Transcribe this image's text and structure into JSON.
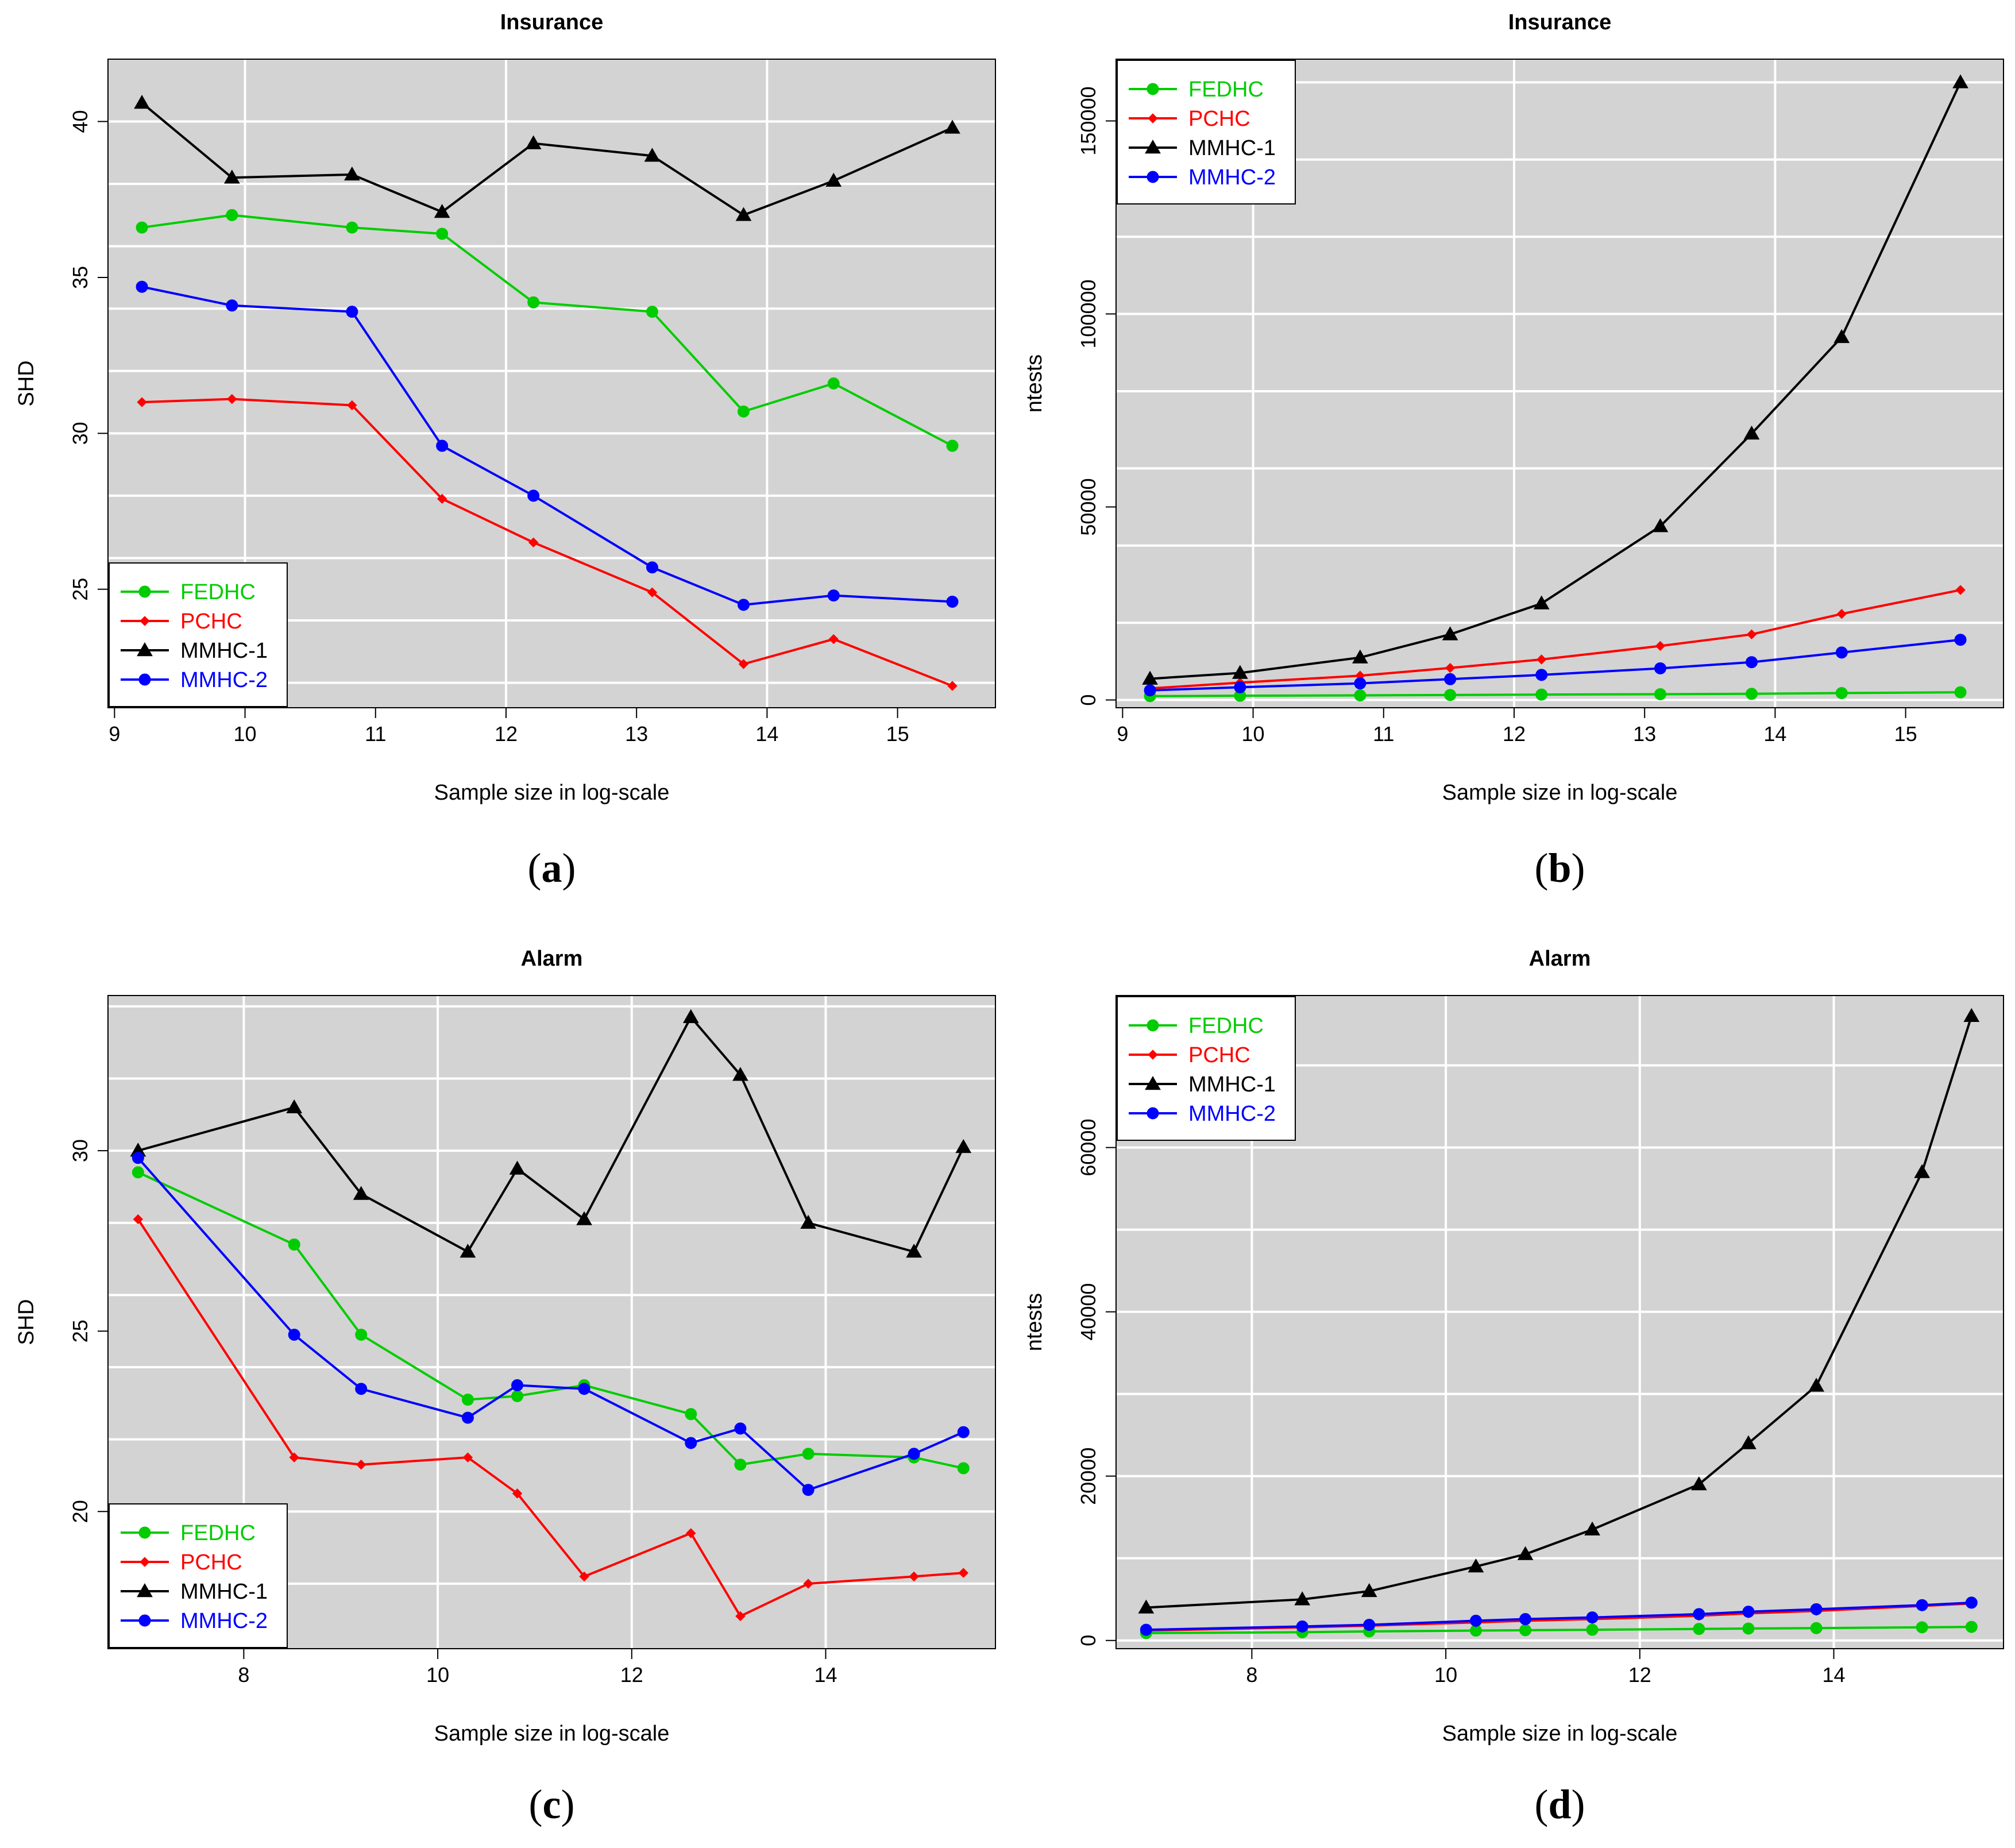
{
  "colors": {
    "FEDHC": "#00cc00",
    "PCHC": "#ff0000",
    "MMHC-1": "#000000",
    "MMHC-2": "#0000ff",
    "panel_bg": "#d3d3d3",
    "grid": "#ffffff"
  },
  "chart_data": [
    {
      "id": "a",
      "caption_letter": "a",
      "type": "line",
      "title": "Insurance",
      "xlabel": "Sample size in log-scale",
      "ylabel": "SHD",
      "xlim": [
        8.95,
        15.75
      ],
      "ylim": [
        21.2,
        42.0
      ],
      "xticks": [
        9,
        10,
        11,
        12,
        13,
        14,
        15
      ],
      "yticks": [
        25,
        30,
        35,
        40
      ],
      "xgrid": [
        10,
        12,
        14
      ],
      "ygrid": [
        22,
        24,
        26,
        28,
        30,
        32,
        34,
        36,
        38,
        40
      ],
      "legend_position": "bottom-left",
      "x": [
        9.21,
        9.9,
        10.82,
        11.51,
        12.21,
        13.12,
        13.82,
        14.51,
        15.42
      ],
      "series": [
        {
          "name": "FEDHC",
          "marker": "circle",
          "values": [
            36.6,
            37.0,
            36.6,
            36.4,
            34.2,
            33.9,
            30.7,
            31.6,
            29.6
          ]
        },
        {
          "name": "PCHC",
          "marker": "diamond",
          "values": [
            31.0,
            31.1,
            30.9,
            27.9,
            26.5,
            24.9,
            22.6,
            23.4,
            21.9
          ]
        },
        {
          "name": "MMHC-1",
          "marker": "triangle",
          "values": [
            40.6,
            38.2,
            38.3,
            37.1,
            39.3,
            38.9,
            37.0,
            38.1,
            39.8
          ]
        },
        {
          "name": "MMHC-2",
          "marker": "circle",
          "values": [
            34.7,
            34.1,
            33.9,
            29.6,
            28.0,
            25.7,
            24.5,
            24.8,
            24.6
          ]
        }
      ]
    },
    {
      "id": "b",
      "caption_letter": "b",
      "type": "line",
      "title": "Insurance",
      "xlabel": "Sample size in log-scale",
      "ylabel": "ntests",
      "xlim": [
        8.95,
        15.75
      ],
      "ylim": [
        -2000,
        166000
      ],
      "xticks": [
        9,
        10,
        11,
        12,
        13,
        14,
        15
      ],
      "yticks": [
        0,
        50000,
        100000,
        150000
      ],
      "xgrid": [
        10,
        12,
        14
      ],
      "ygrid": [
        0,
        20000,
        40000,
        60000,
        80000,
        100000,
        120000,
        140000,
        160000
      ],
      "legend_position": "top-left",
      "x": [
        9.21,
        9.9,
        10.82,
        11.51,
        12.21,
        13.12,
        13.82,
        14.51,
        15.42
      ],
      "series": [
        {
          "name": "FEDHC",
          "marker": "circle",
          "values": [
            1000,
            1100,
            1200,
            1300,
            1400,
            1500,
            1600,
            1800,
            2000
          ]
        },
        {
          "name": "PCHC",
          "marker": "diamond",
          "values": [
            3000,
            4500,
            6300,
            8300,
            10500,
            14000,
            17000,
            22300,
            28500
          ]
        },
        {
          "name": "MMHC-1",
          "marker": "triangle",
          "values": [
            5500,
            7000,
            11000,
            17000,
            25000,
            45000,
            69000,
            94000,
            160000
          ]
        },
        {
          "name": "MMHC-2",
          "marker": "circle",
          "values": [
            2500,
            3300,
            4300,
            5400,
            6500,
            8200,
            9800,
            12300,
            15600
          ]
        }
      ]
    },
    {
      "id": "c",
      "caption_letter": "c",
      "type": "line",
      "title": "Alarm",
      "xlabel": "Sample size in log-scale",
      "ylabel": "SHD",
      "xlim": [
        6.6,
        15.75
      ],
      "ylim": [
        16.2,
        34.3
      ],
      "xticks": [
        8,
        10,
        12,
        14
      ],
      "yticks": [
        20,
        25,
        30
      ],
      "xgrid": [
        8,
        10,
        12,
        14
      ],
      "ygrid": [
        18,
        20,
        22,
        24,
        26,
        28,
        30,
        32,
        34
      ],
      "legend_position": "bottom-left",
      "x": [
        6.91,
        8.52,
        9.21,
        10.31,
        10.82,
        11.51,
        12.61,
        13.12,
        13.82,
        14.91,
        15.42
      ],
      "series": [
        {
          "name": "FEDHC",
          "marker": "circle",
          "values": [
            29.4,
            27.4,
            24.9,
            23.1,
            23.2,
            23.5,
            22.7,
            21.3,
            21.6,
            21.5,
            21.2
          ]
        },
        {
          "name": "PCHC",
          "marker": "diamond",
          "values": [
            28.1,
            21.5,
            21.3,
            21.5,
            20.5,
            18.2,
            19.4,
            17.1,
            18.0,
            18.2,
            18.3
          ]
        },
        {
          "name": "MMHC-1",
          "marker": "triangle",
          "values": [
            30.0,
            31.2,
            28.8,
            27.2,
            29.5,
            28.1,
            33.7,
            32.1,
            28.0,
            27.2,
            30.1
          ]
        },
        {
          "name": "MMHC-2",
          "marker": "circle",
          "values": [
            29.8,
            24.9,
            23.4,
            22.6,
            23.5,
            23.4,
            21.9,
            22.3,
            20.6,
            21.6,
            22.2
          ]
        }
      ]
    },
    {
      "id": "d",
      "caption_letter": "d",
      "type": "line",
      "title": "Alarm",
      "xlabel": "Sample size in log-scale",
      "ylabel": "ntests",
      "xlim": [
        6.6,
        15.75
      ],
      "ylim": [
        -1000,
        78500
      ],
      "xticks": [
        8,
        10,
        12,
        14
      ],
      "yticks": [
        0,
        20000,
        40000,
        60000
      ],
      "xgrid": [
        8,
        10,
        12,
        14
      ],
      "ygrid": [
        0,
        10000,
        20000,
        30000,
        40000,
        50000,
        60000,
        70000
      ],
      "legend_position": "top-left",
      "x": [
        6.91,
        8.52,
        9.21,
        10.31,
        10.82,
        11.51,
        12.61,
        13.12,
        13.82,
        14.91,
        15.42
      ],
      "series": [
        {
          "name": "FEDHC",
          "marker": "circle",
          "values": [
            900,
            1000,
            1100,
            1200,
            1250,
            1300,
            1400,
            1450,
            1500,
            1600,
            1650
          ]
        },
        {
          "name": "PCHC",
          "marker": "diamond",
          "values": [
            1200,
            1600,
            1800,
            2200,
            2400,
            2600,
            3000,
            3300,
            3600,
            4200,
            4500
          ]
        },
        {
          "name": "MMHC-1",
          "marker": "triangle",
          "values": [
            4000,
            5000,
            6000,
            9000,
            10500,
            13500,
            19000,
            24000,
            31000,
            57000,
            76000
          ]
        },
        {
          "name": "MMHC-2",
          "marker": "circle",
          "values": [
            1300,
            1700,
            1900,
            2400,
            2600,
            2800,
            3200,
            3500,
            3800,
            4300,
            4600
          ]
        }
      ]
    }
  ]
}
